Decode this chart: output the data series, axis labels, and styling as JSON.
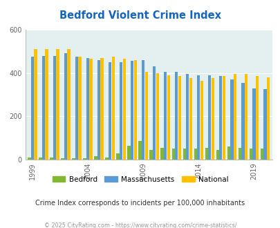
{
  "title": "Bedford Violent Crime Index",
  "subtitle": "Crime Index corresponds to incidents per 100,000 inhabitants",
  "footer": "© 2025 CityRating.com - https://www.cityrating.com/crime-statistics/",
  "years": [
    1999,
    2000,
    2001,
    2002,
    2003,
    2004,
    2005,
    2006,
    2007,
    2008,
    2009,
    2010,
    2011,
    2012,
    2013,
    2014,
    2015,
    2016,
    2017,
    2018,
    2019,
    2020
  ],
  "bedford": [
    10,
    10,
    10,
    5,
    5,
    5,
    15,
    10,
    30,
    65,
    85,
    45,
    55,
    50,
    50,
    50,
    55,
    45,
    60,
    55,
    50,
    50
  ],
  "massachusetts": [
    475,
    480,
    480,
    490,
    475,
    470,
    460,
    450,
    450,
    455,
    460,
    430,
    405,
    405,
    395,
    390,
    390,
    385,
    370,
    355,
    330,
    325
  ],
  "national": [
    510,
    510,
    510,
    510,
    475,
    465,
    470,
    475,
    465,
    460,
    405,
    400,
    390,
    385,
    375,
    365,
    375,
    385,
    395,
    395,
    385,
    380
  ],
  "ylim": [
    0,
    600
  ],
  "yticks": [
    0,
    200,
    400,
    600
  ],
  "colors": {
    "bedford": "#80b832",
    "massachusetts": "#5b9bd5",
    "national": "#ffc000",
    "background": "#e4f0f0",
    "title": "#1565c0",
    "subtitle": "#333333",
    "footer": "#999999"
  },
  "legend_labels": [
    "Bedford",
    "Massachusetts",
    "National"
  ],
  "x_tick_year_positions": [
    0,
    5,
    10,
    15,
    20
  ],
  "x_tick_labels": [
    "1999",
    "2004",
    "2009",
    "2014",
    "2019"
  ]
}
